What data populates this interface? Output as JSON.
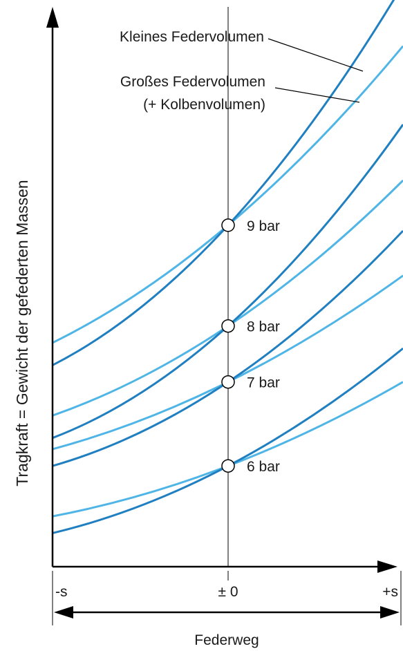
{
  "chart_data": {
    "type": "line",
    "title": "",
    "ylabel": "Tragkraft = Gewicht der gefederten Massen",
    "xlabel": "Federweg",
    "x_ticks": [
      "-s",
      "± 0",
      "+s"
    ],
    "x": [
      -1,
      0,
      1
    ],
    "legend": {
      "small_volume": "Kleines Federvolumen",
      "large_volume_line1": "Großes Federvolumen",
      "large_volume_line2": "(+ Kolbenvolumen)"
    },
    "colors": {
      "small_volume": "#1f7fc0",
      "large_volume": "#4fb5e6",
      "axis": "#000000"
    },
    "series": [
      {
        "pressure": "9 bar",
        "small": [
          0.36,
          0.61,
          1.04
        ],
        "large": [
          0.4,
          0.61,
          0.93
        ]
      },
      {
        "pressure": "8 bar",
        "small": [
          0.23,
          0.43,
          0.79
        ],
        "large": [
          0.27,
          0.43,
          0.69
        ]
      },
      {
        "pressure": "7 bar",
        "small": [
          0.18,
          0.33,
          0.6
        ],
        "large": [
          0.21,
          0.33,
          0.52
        ]
      },
      {
        "pressure": "6 bar",
        "small": [
          0.06,
          0.18,
          0.39
        ],
        "large": [
          0.09,
          0.18,
          0.33
        ]
      }
    ]
  }
}
